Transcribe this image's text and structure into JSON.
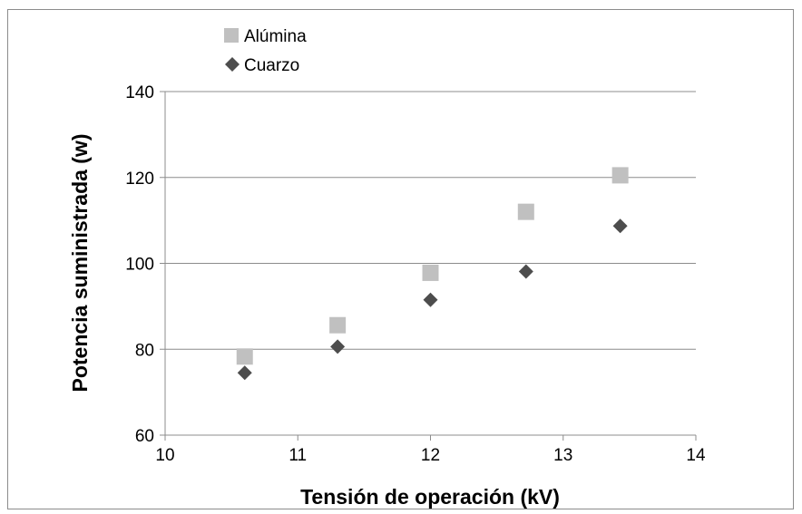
{
  "chart_data": {
    "type": "scatter",
    "title": "",
    "xlabel": "Tensión de operación (kV)",
    "ylabel": "Potencia suministrada (w)",
    "xlim": [
      10,
      14
    ],
    "ylim": [
      60,
      140
    ],
    "x_ticks": [
      "10",
      "11",
      "12",
      "13",
      "14"
    ],
    "y_ticks": [
      "60",
      "80",
      "100",
      "120",
      "140"
    ],
    "grid": "horizontal",
    "legend_position": "top-left",
    "series": [
      {
        "name": "Alúmina",
        "marker": "square",
        "color": "#c0c0c0",
        "x": [
          10.6,
          11.3,
          12.0,
          12.72,
          13.43
        ],
        "y": [
          78.3,
          85.6,
          97.8,
          112.0,
          120.5
        ]
      },
      {
        "name": "Cuarzo",
        "marker": "diamond",
        "color": "#4d4d4d",
        "x": [
          10.6,
          11.3,
          12.0,
          12.72,
          13.43
        ],
        "y": [
          74.5,
          80.6,
          91.5,
          98.1,
          108.7
        ]
      }
    ]
  }
}
